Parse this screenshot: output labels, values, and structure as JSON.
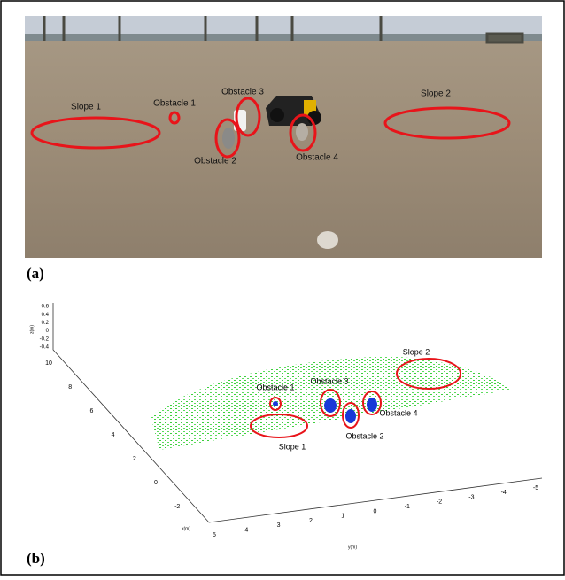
{
  "panels": {
    "a": {
      "label": "(a)",
      "annotations": [
        "Slope 1",
        "Obstacle 1",
        "Obstacle 3",
        "Obstacle 2",
        "Obstacle 4",
        "Slope 2"
      ]
    },
    "b": {
      "label": "(b)",
      "annotations": [
        "Slope 1",
        "Obstacle 1",
        "Obstacle 3",
        "Obstacle 2",
        "Obstacle 4",
        "Slope 2"
      ],
      "z_axis_label": "z(m)",
      "x_axis_label": "x(m)",
      "y_axis_label": "y(m)",
      "z_ticks": [
        "0.6",
        "0.4",
        "0.2",
        "0",
        "-0.2",
        "-0.4"
      ],
      "x_ticks": [
        "10",
        "8",
        "6",
        "4",
        "2",
        "0",
        "-2"
      ],
      "y_ticks": [
        "5",
        "4",
        "3",
        "2",
        "1",
        "0",
        "-1",
        "-2",
        "-3",
        "-4",
        "-5"
      ]
    }
  }
}
